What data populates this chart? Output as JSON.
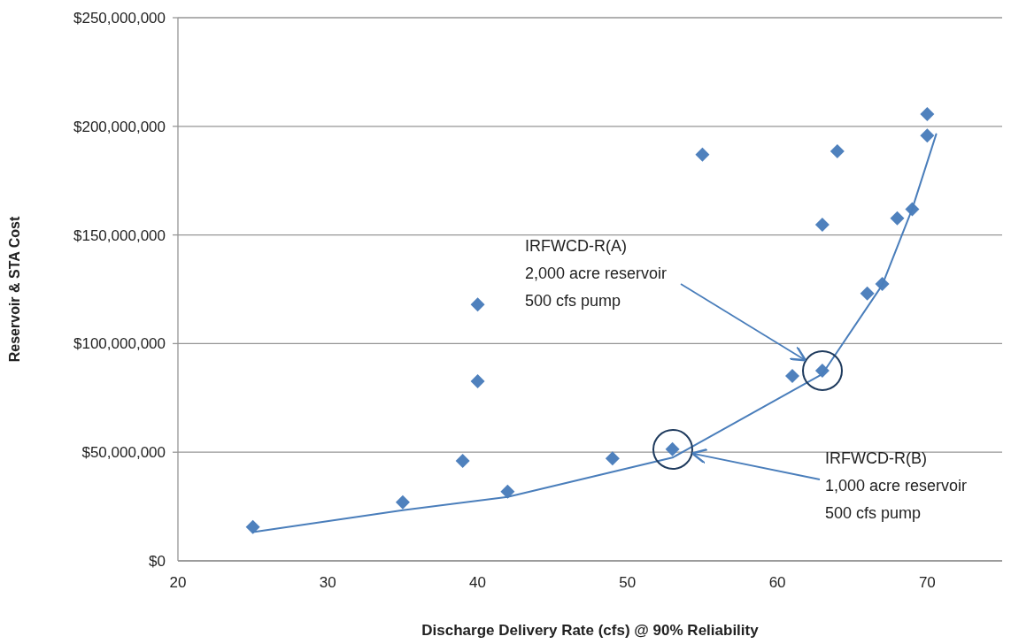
{
  "chart_data": {
    "type": "scatter",
    "xlabel": "Discharge Delivery Rate (cfs) @ 90% Reliability",
    "ylabel": "Reservoir & STA Cost",
    "xlim": [
      20,
      75
    ],
    "xticks": [
      20,
      30,
      40,
      50,
      60,
      70
    ],
    "ylim": [
      0,
      250000000
    ],
    "yticks": [
      {
        "value": 0,
        "label": "$0"
      },
      {
        "value": 50000000,
        "label": "$50,000,000"
      },
      {
        "value": 100000000,
        "label": "$100,000,000"
      },
      {
        "value": 150000000,
        "label": "$150,000,000"
      },
      {
        "value": 200000000,
        "label": "$200,000,000"
      },
      {
        "value": 250000000,
        "label": "$250,000,000"
      }
    ],
    "grid": "y",
    "marker": "diamond",
    "series": [
      {
        "color": "#4f81bd",
        "x": [
          25,
          35,
          39,
          40,
          40,
          42,
          49,
          53,
          55,
          61,
          63,
          63,
          64,
          66,
          67,
          68,
          69,
          70,
          70
        ],
        "values": [
          15600000,
          27000000,
          46000000,
          118000000,
          82700000,
          31900000,
          47100000,
          51400000,
          187000000,
          85100000,
          87500000,
          154700000,
          188500000,
          123100000,
          127400000,
          157700000,
          161800000,
          195700000,
          205600000
        ]
      },
      {
        "type": "line",
        "color": "#4a7ebb",
        "marker": "none",
        "line_style": "solid",
        "x": [
          25,
          35,
          42,
          53,
          63,
          67,
          69,
          70.6
        ],
        "values": [
          13200000,
          23300000,
          29400000,
          47500000,
          86000000,
          127000000,
          162000000,
          196400000
        ]
      }
    ],
    "annotations": [
      "IRFWCD-R(A)\n2,000 acre reservoir\n500 cfs pump",
      "IRFWCD-R(B)\n1,000 acre reservoir\n500 cfs pump"
    ]
  }
}
